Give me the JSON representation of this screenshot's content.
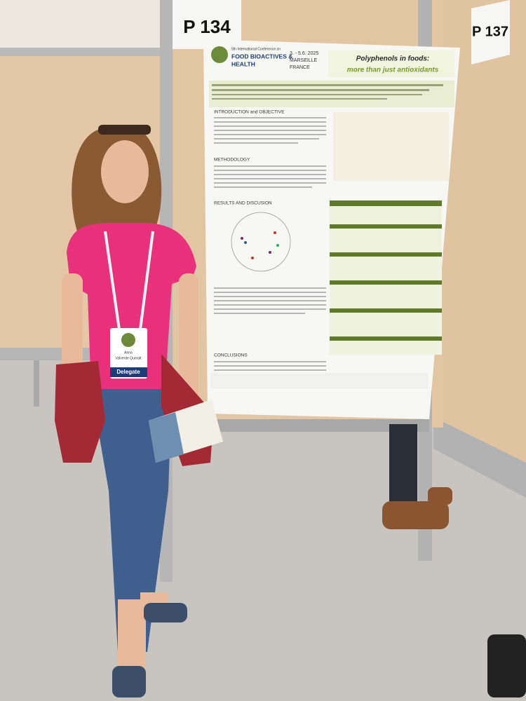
{
  "signs": {
    "left": "P 134",
    "right": "P 137"
  },
  "poster": {
    "conference": "5th International Conference on",
    "name_line1": "FOOD BIOACTIVES &",
    "name_line2": "HEALTH",
    "dates": "3. - 5.6. 2025",
    "city": "MARSEILLE",
    "country": "FRANCE",
    "title_line1": "Polyphenols in foods:",
    "title_line2": "more than just antioxidants",
    "sections": [
      "INTRODUCTION and OBJECTIVE",
      "METHODOLOGY",
      "RESULTS AND DISCUSION",
      "CONCLUSIONS"
    ]
  },
  "badge": {
    "name_line1": "Anna",
    "name_line2": "Valverde Queralt",
    "role": "Delegate"
  }
}
